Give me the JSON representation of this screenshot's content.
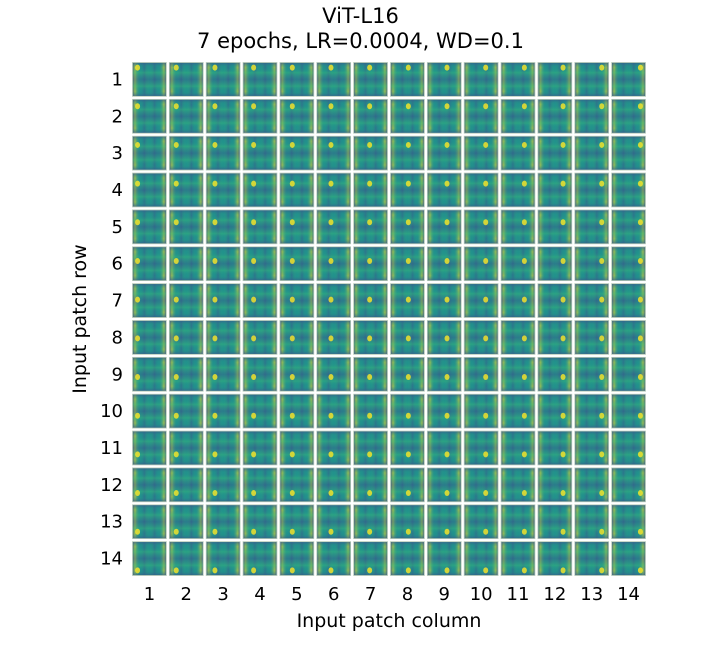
{
  "chart_data": {
    "type": "heatmap",
    "title": "ViT-L16",
    "subtitle": "7 epochs, LR=0.0004, WD=0.1",
    "xlabel": "Input patch column",
    "ylabel": "Input patch row",
    "rows": 14,
    "columns": 14,
    "x_ticks": [
      "1",
      "2",
      "3",
      "4",
      "5",
      "6",
      "7",
      "8",
      "9",
      "10",
      "11",
      "12",
      "13",
      "14"
    ],
    "y_ticks": [
      "1",
      "2",
      "3",
      "4",
      "5",
      "6",
      "7",
      "8",
      "9",
      "10",
      "11",
      "12",
      "13",
      "14"
    ],
    "colormap": "viridis",
    "colors": {
      "low": "#3b528b",
      "mid": "#21918c",
      "high": "#fde725",
      "separator": "#ffffff"
    },
    "grid": false
  }
}
